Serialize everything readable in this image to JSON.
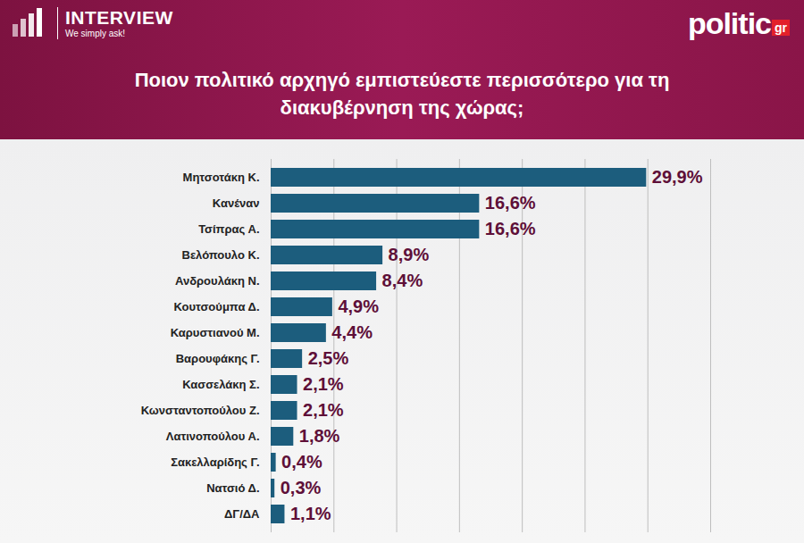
{
  "header": {
    "logo": "INTERVIEW",
    "tagline": "We simply ask!",
    "brand": "politic",
    "brand_suffix": "gr"
  },
  "chart_data": {
    "type": "bar",
    "title": "Ποιον πολιτικό αρχηγό εμπιστεύεστε περισσότερο για τη διακυβέρνηση της χώρας;",
    "orientation": "horizontal",
    "categories": [
      "Μητσοτάκη Κ.",
      "Κανέναν",
      "Τσίπρας Α.",
      "Βελόπουλο Κ.",
      "Ανδρουλάκη Ν.",
      "Κουτσούμπα Δ.",
      "Καρυστιανού Μ.",
      "Βαρουφάκης Γ.",
      "Κασσελάκη Σ.",
      "Κωνσταντοπούλου Ζ.",
      "Λατινοπούλου Α.",
      "Σακελλαρίδης Γ.",
      "Νατσιό Δ.",
      "ΔΓ/ΔΑ"
    ],
    "values": [
      29.9,
      16.6,
      16.6,
      8.9,
      8.4,
      4.9,
      4.4,
      2.5,
      2.1,
      2.1,
      1.8,
      0.4,
      0.3,
      1.1
    ],
    "value_labels": [
      "29,9%",
      "16,6%",
      "16,6%",
      "8,9%",
      "8,4%",
      "4,9%",
      "4,4%",
      "2,5%",
      "2,1%",
      "2,1%",
      "1,8%",
      "0,4%",
      "0,3%",
      "1,1%"
    ],
    "color": "#1c5d7d",
    "xlim": [
      0,
      35
    ],
    "xticks": [
      0,
      5,
      10,
      15,
      20,
      25,
      30,
      35
    ],
    "grid": true,
    "data_labels": true,
    "tick_labels": "y"
  }
}
